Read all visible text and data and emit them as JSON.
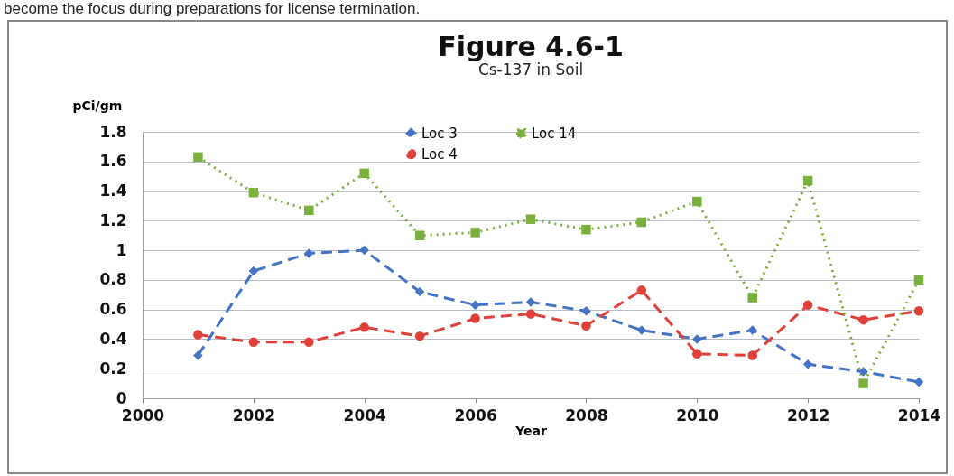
{
  "chart_data": {
    "type": "line",
    "title": "Figure 4.6-1",
    "subtitle": "Cs-137 in Soil",
    "xlabel": "Year",
    "ylabel": "pCi/gm",
    "annotations": [
      "become the focus during preparations for license termination."
    ],
    "x": [
      2001,
      2002,
      2003,
      2004,
      2005,
      2006,
      2007,
      2008,
      2009,
      2010,
      2011,
      2012,
      2013,
      2014
    ],
    "series": [
      {
        "name": "Loc 3",
        "color": "#4472c4",
        "marker": "diamond",
        "line_style": "dashed",
        "values": [
          0.29,
          0.86,
          0.98,
          1.0,
          0.72,
          0.63,
          0.65,
          0.59,
          0.46,
          0.4,
          0.46,
          0.23,
          0.18,
          0.11
        ]
      },
      {
        "name": "Loc 4",
        "color": "#e0403a",
        "marker": "circle",
        "line_style": "dashed",
        "values": [
          0.43,
          0.38,
          0.38,
          0.48,
          0.42,
          0.54,
          0.57,
          0.49,
          0.73,
          0.3,
          0.29,
          0.63,
          0.53,
          0.59
        ]
      },
      {
        "name": "Loc 14",
        "color": "#7ab03c",
        "marker": "square",
        "line_style": "dotted",
        "values": [
          1.63,
          1.39,
          1.27,
          1.52,
          1.1,
          1.12,
          1.21,
          1.14,
          1.19,
          1.33,
          0.68,
          1.47,
          0.1,
          0.8
        ]
      }
    ],
    "xlim": [
      2000,
      2014
    ],
    "xticks": [
      2000,
      2002,
      2004,
      2006,
      2008,
      2010,
      2012,
      2014
    ],
    "ylim": [
      0,
      1.8
    ],
    "yticks": [
      0,
      0.2,
      0.4,
      0.6,
      0.8,
      1,
      1.2,
      1.4,
      1.6,
      1.8
    ],
    "grid": "y",
    "legend": "top"
  }
}
